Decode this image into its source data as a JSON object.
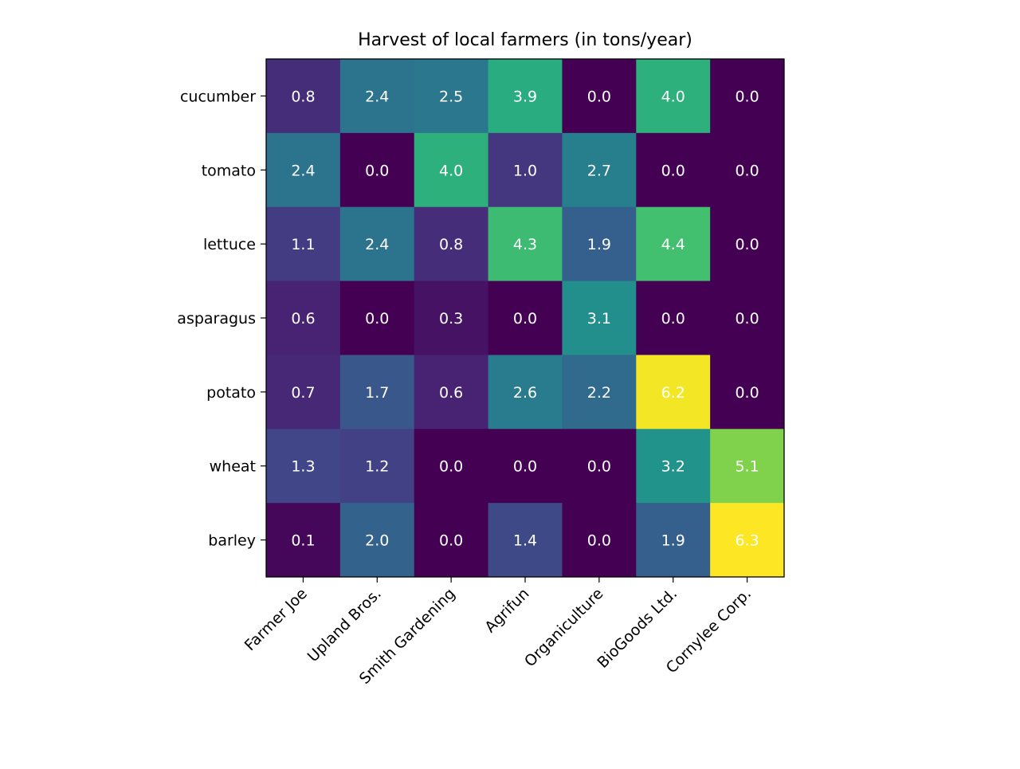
{
  "chart_data": {
    "type": "heatmap",
    "title": "Harvest of local farmers (in tons/year)",
    "xlabel": "",
    "ylabel": "",
    "x_categories": [
      "Farmer Joe",
      "Upland Bros.",
      "Smith Gardening",
      "Agrifun",
      "Organiculture",
      "BioGoods Ltd.",
      "Cornylee Corp."
    ],
    "y_categories": [
      "cucumber",
      "tomato",
      "lettuce",
      "asparagus",
      "potato",
      "wheat",
      "barley"
    ],
    "values": [
      [
        0.8,
        2.4,
        2.5,
        3.9,
        0.0,
        4.0,
        0.0
      ],
      [
        2.4,
        0.0,
        4.0,
        1.0,
        2.7,
        0.0,
        0.0
      ],
      [
        1.1,
        2.4,
        0.8,
        4.3,
        1.9,
        4.4,
        0.0
      ],
      [
        0.6,
        0.0,
        0.3,
        0.0,
        3.1,
        0.0,
        0.0
      ],
      [
        0.7,
        1.7,
        0.6,
        2.6,
        2.2,
        6.2,
        0.0
      ],
      [
        1.3,
        1.2,
        0.0,
        0.0,
        0.0,
        3.2,
        5.1
      ],
      [
        0.1,
        2.0,
        0.0,
        1.4,
        0.0,
        1.9,
        6.3
      ]
    ],
    "colormap": "viridis",
    "color_range": [
      0.0,
      6.3
    ],
    "annotation_color": "#ffffff",
    "x_tick_rotation_deg": 45,
    "grid": false,
    "legend": "none"
  }
}
